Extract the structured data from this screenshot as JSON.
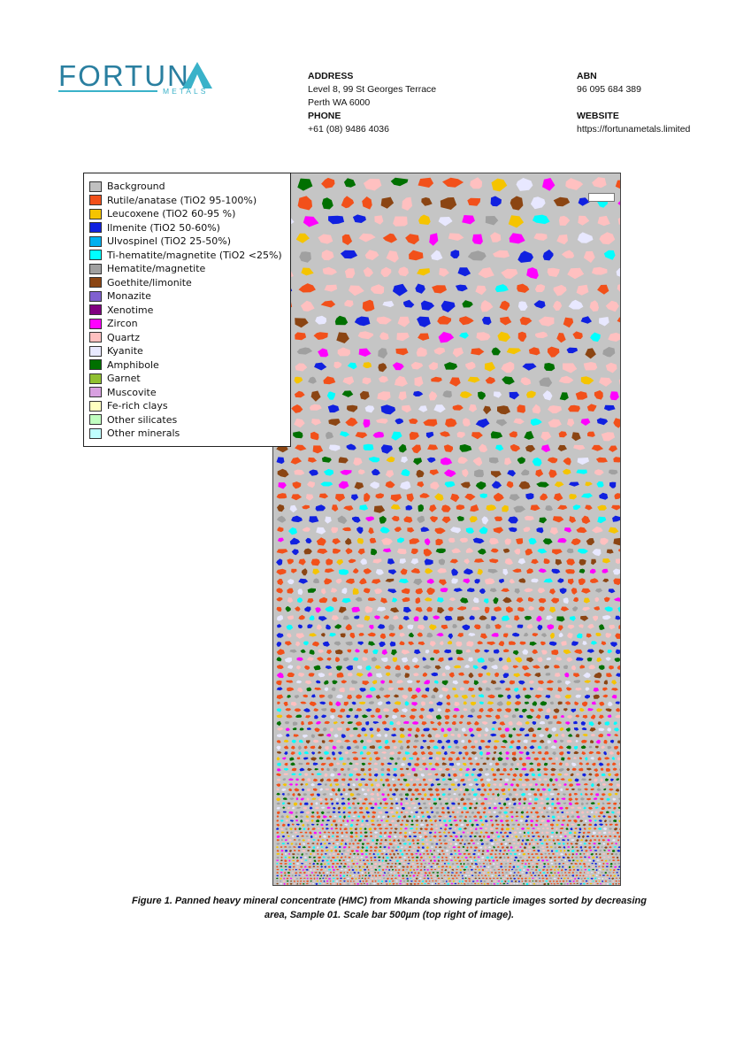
{
  "logo": {
    "word": "FORTUN",
    "sub": "METALS",
    "color_primary": "#2a7fa0",
    "color_accent": "#3ab2c9"
  },
  "contact": {
    "address_label": "ADDRESS",
    "address_line1": "Level 8, 99 St Georges Terrace",
    "address_line2": "Perth WA 6000",
    "phone_label": "PHONE",
    "phone": "+61 (08) 9486 4036",
    "abn_label": "ABN",
    "abn": "96 095 684 389",
    "website_label": "WEBSITE",
    "website": "https://fortunametals.limited"
  },
  "legend": [
    {
      "label": "Background",
      "color": "#c0c0c0"
    },
    {
      "label": "Rutile/anatase (TiO2 95-100%)",
      "color": "#f2501a"
    },
    {
      "label": "Leucoxene (TiO2 60-95 %)",
      "color": "#f5c400"
    },
    {
      "label": "Ilmenite (TiO2 50-60%)",
      "color": "#1020e0"
    },
    {
      "label": "Ulvospinel (TiO2 25-50%)",
      "color": "#00b0f0"
    },
    {
      "label": "Ti-hematite/magnetite (TiO2 <25%)",
      "color": "#00ffff"
    },
    {
      "label": "Hematite/magnetite",
      "color": "#a0a0a0"
    },
    {
      "label": "Goethite/limonite",
      "color": "#8b4513"
    },
    {
      "label": "Monazite",
      "color": "#8060d0"
    },
    {
      "label": "Xenotime",
      "color": "#800080"
    },
    {
      "label": "Zircon",
      "color": "#ff00ff"
    },
    {
      "label": "Quartz",
      "color": "#ffc0c0"
    },
    {
      "label": "Kyanite",
      "color": "#e8e8ff"
    },
    {
      "label": "Amphibole",
      "color": "#007000"
    },
    {
      "label": "Garnet",
      "color": "#90c030"
    },
    {
      "label": "Muscovite",
      "color": "#d8a0e0"
    },
    {
      "label": "Fe-rich clays",
      "color": "#ffffc0"
    },
    {
      "label": "Other silicates",
      "color": "#c0ffc0"
    },
    {
      "label": "Other minerals",
      "color": "#c0ffff"
    }
  ],
  "figure": {
    "background_color": "#c5c5c5",
    "caption_line1": "Figure 1. Panned heavy mineral concentrate (HMC) from Mkanda showing particle images sorted by decreasing",
    "caption_line2": "area, Sample 01. Scale bar 500µm (top right of image)."
  }
}
